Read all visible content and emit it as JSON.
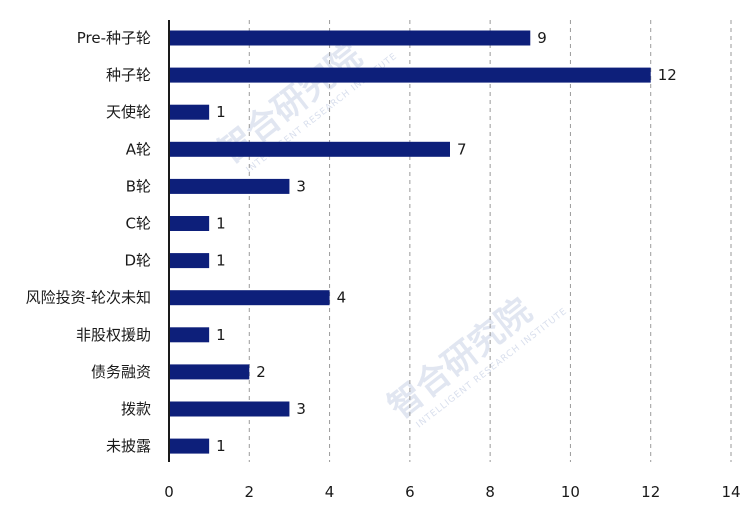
{
  "chart_data": {
    "type": "bar",
    "orientation": "horizontal",
    "categories": [
      "Pre-种子轮",
      "种子轮",
      "天使轮",
      "A轮",
      "B轮",
      "C轮",
      "D轮",
      "风险投资-轮次未知",
      "非股权援助",
      "债务融资",
      "拨款",
      "未披露"
    ],
    "values": [
      9,
      12,
      1,
      7,
      3,
      1,
      1,
      4,
      1,
      2,
      3,
      1
    ],
    "xlim": [
      0,
      14
    ],
    "xticks": [
      0,
      2,
      4,
      6,
      8,
      10,
      12,
      14
    ],
    "grid": "vertical dashed",
    "bar_color": "#0d1f7a"
  },
  "watermark": {
    "text": "智合研究院",
    "subtext": "INTELLIGENT RESEARCH INSTITUTE"
  }
}
